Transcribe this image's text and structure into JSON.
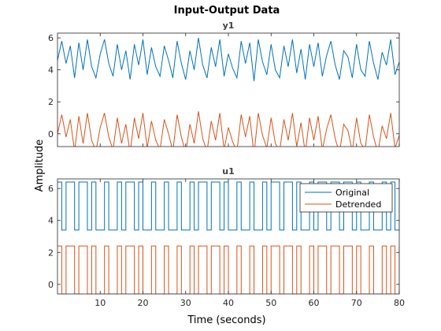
{
  "chart_data": {
    "type": "line",
    "title": "Input-Output Data",
    "xlabel": "Time (seconds)",
    "ylabel": "Amplitude",
    "xlim": [
      0,
      80
    ],
    "x_ticks": [
      10,
      20,
      30,
      40,
      50,
      60,
      70,
      80
    ],
    "legend": {
      "placement": "top-right of u1 panel",
      "entries": [
        "Original",
        "Detrended"
      ]
    },
    "colors": {
      "Original": "#0072BD",
      "Detrended": "#D95319"
    },
    "panels": [
      {
        "name": "y1",
        "ylim": [
          -0.8,
          6.3
        ],
        "y_ticks": [
          0,
          2,
          4,
          6
        ],
        "series": [
          {
            "name": "Original",
            "x": [
              0,
              1,
              2,
              3,
              4,
              5,
              6,
              7,
              8,
              9,
              10,
              11,
              12,
              13,
              14,
              15,
              16,
              17,
              18,
              19,
              20,
              21,
              22,
              23,
              24,
              25,
              26,
              27,
              28,
              29,
              30,
              31,
              32,
              33,
              34,
              35,
              36,
              37,
              38,
              39,
              40,
              41,
              42,
              43,
              44,
              45,
              46,
              47,
              48,
              49,
              50,
              51,
              52,
              53,
              54,
              55,
              56,
              57,
              58,
              59,
              60,
              61,
              62,
              63,
              64,
              65,
              66,
              67,
              68,
              69,
              70,
              71,
              72,
              73,
              74,
              75,
              76,
              77,
              78,
              79,
              80
            ],
            "values": [
              4.6,
              5.8,
              4.4,
              5.5,
              3.5,
              5.7,
              4.0,
              5.9,
              4.2,
              3.5,
              5.0,
              5.9,
              4.4,
              3.6,
              5.6,
              4.0,
              5.2,
              3.4,
              5.6,
              4.3,
              5.9,
              3.7,
              5.4,
              4.2,
              3.6,
              5.5,
              4.6,
              3.5,
              5.8,
              4.4,
              3.4,
              5.2,
              4.0,
              6.0,
              4.3,
              3.5,
              5.4,
              4.2,
              5.9,
              3.6,
              5.0,
              4.1,
              3.5,
              5.8,
              4.4,
              5.7,
              3.3,
              5.9,
              4.5,
              3.7,
              5.6,
              4.0,
              3.5,
              5.5,
              4.2,
              5.9,
              3.8,
              5.3,
              3.4,
              5.6,
              4.2,
              5.7,
              3.6,
              4.9,
              5.8,
              4.3,
              3.4,
              5.2,
              4.8,
              3.5,
              5.6,
              4.0,
              3.6,
              5.8,
              4.4,
              3.4,
              5.1,
              4.3,
              5.9,
              3.7,
              4.5
            ]
          },
          {
            "name": "Detrended",
            "x": [
              0,
              1,
              2,
              3,
              4,
              5,
              6,
              7,
              8,
              9,
              10,
              11,
              12,
              13,
              14,
              15,
              16,
              17,
              18,
              19,
              20,
              21,
              22,
              23,
              24,
              25,
              26,
              27,
              28,
              29,
              30,
              31,
              32,
              33,
              34,
              35,
              36,
              37,
              38,
              39,
              40,
              41,
              42,
              43,
              44,
              45,
              46,
              47,
              48,
              49,
              50,
              51,
              52,
              53,
              54,
              55,
              56,
              57,
              58,
              59,
              60,
              61,
              62,
              63,
              64,
              65,
              66,
              67,
              68,
              69,
              70,
              71,
              72,
              73,
              74,
              75,
              76,
              77,
              78,
              79,
              80
            ],
            "values": [
              0.0,
              1.2,
              -0.2,
              0.9,
              -1.1,
              1.1,
              -0.6,
              1.3,
              -0.4,
              -1.1,
              0.4,
              1.3,
              -0.2,
              -1.0,
              1.0,
              -0.6,
              0.6,
              -1.2,
              1.0,
              -0.3,
              1.3,
              -0.9,
              0.8,
              -0.4,
              -1.0,
              0.9,
              0.0,
              -1.1,
              1.2,
              -0.2,
              -1.2,
              0.6,
              -0.6,
              1.4,
              -0.3,
              -1.1,
              0.8,
              -0.4,
              1.3,
              -1.0,
              0.4,
              -0.5,
              -1.1,
              1.2,
              -0.2,
              1.1,
              -1.3,
              1.3,
              -0.1,
              -0.9,
              1.0,
              -0.6,
              -1.1,
              0.9,
              -0.4,
              1.3,
              -0.8,
              0.7,
              -1.2,
              1.0,
              -0.4,
              1.1,
              -1.0,
              0.3,
              1.2,
              -0.3,
              -1.2,
              0.6,
              0.2,
              -1.1,
              1.0,
              -0.6,
              -1.0,
              1.2,
              -0.2,
              -1.2,
              0.5,
              -0.3,
              1.3,
              -0.9,
              -0.1
            ]
          }
        ]
      },
      {
        "name": "u1",
        "ylim": [
          -0.6,
          6.6
        ],
        "y_ticks": [
          0,
          2,
          4,
          6
        ],
        "series": [
          {
            "name": "Original",
            "switch_times": [
              0,
              1,
              2,
              4,
              5,
              7,
              8,
              9,
              11,
              12,
              14,
              15,
              16,
              18,
              19,
              20,
              22,
              23,
              25,
              26,
              28,
              29,
              31,
              32,
              33,
              35,
              36,
              38,
              39,
              40,
              42,
              43,
              45,
              46,
              48,
              49,
              50,
              52,
              53,
              55,
              56,
              57,
              59,
              60,
              61,
              63,
              64,
              66,
              67,
              69,
              70,
              71,
              73,
              74,
              76,
              77,
              78,
              79,
              80
            ],
            "levels": [
              6.4,
              3.4
            ]
          },
          {
            "name": "Detrended",
            "switch_times": [
              0,
              1,
              2,
              4,
              5,
              7,
              8,
              9,
              11,
              12,
              14,
              15,
              16,
              18,
              19,
              20,
              22,
              23,
              25,
              26,
              28,
              29,
              31,
              32,
              33,
              35,
              36,
              38,
              39,
              40,
              42,
              43,
              45,
              46,
              48,
              49,
              50,
              52,
              53,
              55,
              56,
              57,
              59,
              60,
              61,
              63,
              64,
              66,
              67,
              69,
              70,
              71,
              73,
              74,
              76,
              77,
              78,
              79,
              80
            ],
            "levels": [
              2.4,
              -0.6
            ]
          }
        ]
      }
    ]
  }
}
